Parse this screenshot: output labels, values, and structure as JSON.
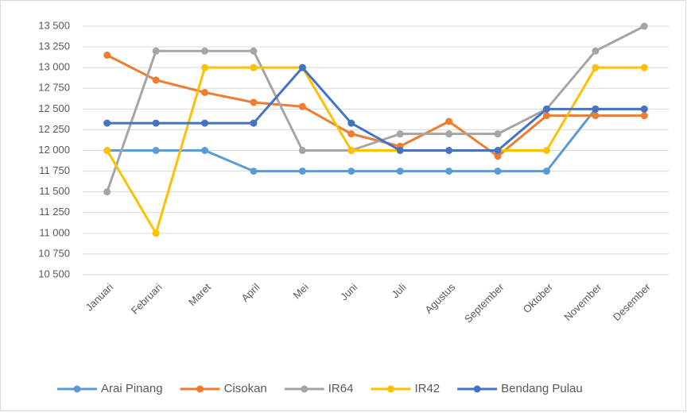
{
  "chart_data": {
    "type": "line",
    "categories": [
      "Januari",
      "Februari",
      "Maret",
      "April",
      "Mei",
      "Juni",
      "Juli",
      "Agustus",
      "September",
      "Oktober",
      "November",
      "Desember"
    ],
    "series": [
      {
        "name": "Arai Pinang",
        "color": "#5b9bd5",
        "values": [
          12000,
          12000,
          12000,
          11750,
          11750,
          11750,
          11750,
          11750,
          11750,
          11750,
          12500,
          12500
        ]
      },
      {
        "name": "Cisokan",
        "color": "#ed7d31",
        "values": [
          13150,
          12850,
          12700,
          12580,
          12530,
          12200,
          12050,
          12350,
          11930,
          12420,
          12420,
          12420
        ]
      },
      {
        "name": "IR64",
        "color": "#a5a5a5",
        "values": [
          11500,
          13200,
          13200,
          13200,
          12000,
          12000,
          12200,
          12200,
          12200,
          12500,
          13200,
          13500
        ]
      },
      {
        "name": "IR42",
        "color": "#ffc000",
        "values": [
          12000,
          11000,
          13000,
          13000,
          13000,
          12000,
          12000,
          12000,
          12000,
          12000,
          13000,
          13000
        ]
      },
      {
        "name": "Bendang Pulau",
        "color": "#4472c4",
        "values": [
          12330,
          12330,
          12330,
          12330,
          13000,
          12330,
          12000,
          12000,
          12000,
          12500,
          12500,
          12500
        ]
      }
    ],
    "ylim": [
      10500,
      13500
    ],
    "yticks": [
      {
        "value": 10500,
        "label": "10 500"
      },
      {
        "value": 10750,
        "label": "10 750"
      },
      {
        "value": 11000,
        "label": "11 000"
      },
      {
        "value": 11250,
        "label": "11 250"
      },
      {
        "value": 11500,
        "label": "11 500"
      },
      {
        "value": 11750,
        "label": "11 750"
      },
      {
        "value": 12000,
        "label": "12 000"
      },
      {
        "value": 12250,
        "label": "12 250"
      },
      {
        "value": 12500,
        "label": "12 500"
      },
      {
        "value": 12750,
        "label": "12 750"
      },
      {
        "value": 13000,
        "label": "13 000"
      },
      {
        "value": 13250,
        "label": "13 250"
      },
      {
        "value": 13500,
        "label": "13 500"
      }
    ],
    "grid": true,
    "legend": "bottom"
  }
}
